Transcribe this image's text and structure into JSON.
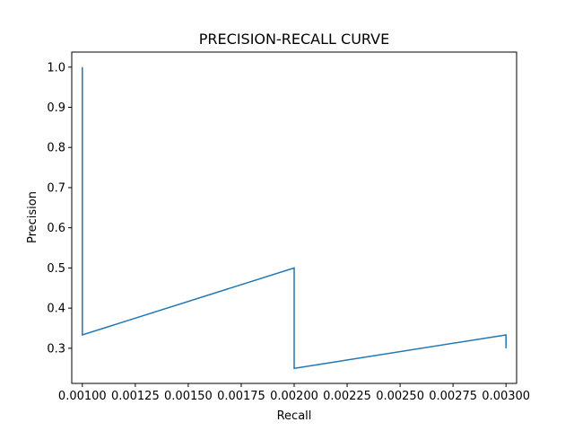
{
  "chart_data": {
    "type": "line",
    "title": "PRECISION-RECALL CURVE",
    "xlabel": "Recall",
    "ylabel": "Precision",
    "xlim": [
      0.00095,
      0.00305
    ],
    "ylim": [
      0.2125,
      1.0375
    ],
    "grid": false,
    "legend": "none",
    "x_ticks": [
      0.001,
      0.00125,
      0.0015,
      0.00175,
      0.002,
      0.00225,
      0.0025,
      0.00275,
      0.003
    ],
    "x_tick_labels": [
      "0.00100",
      "0.00125",
      "0.00150",
      "0.00175",
      "0.00200",
      "0.00225",
      "0.00250",
      "0.00275",
      "0.00300"
    ],
    "y_ticks": [
      0.3,
      0.4,
      0.5,
      0.6,
      0.7,
      0.8,
      0.9,
      1.0
    ],
    "y_tick_labels": [
      "0.3",
      "0.4",
      "0.5",
      "0.6",
      "0.7",
      "0.8",
      "0.9",
      "1.0"
    ],
    "series": [
      {
        "x": [
          0.001,
          0.001,
          0.002,
          0.002,
          0.003,
          0.003
        ],
        "y": [
          1.0,
          0.3333,
          0.5,
          0.25,
          0.3333,
          0.3
        ],
        "color": "#1f77b4"
      }
    ]
  }
}
